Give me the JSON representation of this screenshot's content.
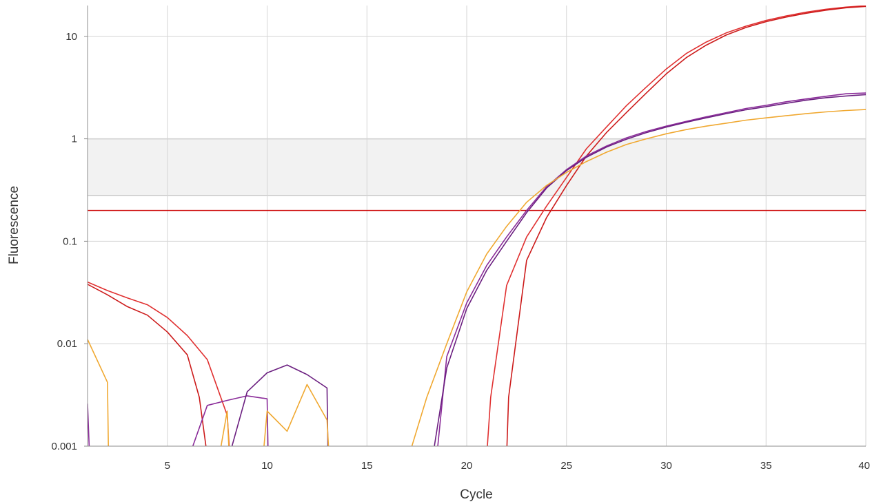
{
  "chart_data": {
    "type": "line",
    "title": "",
    "xlabel": "Cycle",
    "ylabel": "Fluorescence",
    "yscale": "log",
    "xlim": [
      1,
      40
    ],
    "ylim": [
      0.001,
      20
    ],
    "x_ticks": [
      5,
      10,
      15,
      20,
      25,
      30,
      35,
      40
    ],
    "x_tick_labels": [
      "5",
      "10",
      "15",
      "20",
      "25",
      "30",
      "35",
      "40"
    ],
    "y_ticks": [
      0.001,
      0.01,
      0.1,
      1,
      10
    ],
    "y_tick_labels": [
      "0.001",
      "0.01",
      "0.1",
      "1",
      "10"
    ],
    "grid": true,
    "legend": "none",
    "threshold": {
      "value": 0.2,
      "color": "#cc0000"
    },
    "shaded_band": {
      "from": 0.28,
      "to": 1.0,
      "color": "#f2f2f2"
    },
    "series": [
      {
        "color": "#e03030",
        "points": [
          [
            1,
            0.04
          ],
          [
            2,
            0.033
          ],
          [
            3,
            0.028
          ],
          [
            4,
            0.024
          ],
          [
            5,
            0.018
          ],
          [
            6,
            0.012
          ],
          [
            7,
            0.007
          ],
          [
            8,
            0.002
          ],
          [
            8.2,
            0.0005
          ],
          [
            21,
            0.0008
          ],
          [
            21.2,
            0.003
          ],
          [
            22,
            0.037
          ],
          [
            23,
            0.11
          ],
          [
            24,
            0.22
          ],
          [
            25,
            0.42
          ],
          [
            26,
            0.8
          ],
          [
            27,
            1.3
          ],
          [
            28,
            2.1
          ],
          [
            29,
            3.2
          ],
          [
            30,
            4.8
          ],
          [
            31,
            6.8
          ],
          [
            32,
            8.8
          ],
          [
            33,
            10.8
          ],
          [
            34,
            12.6
          ],
          [
            35,
            14.3
          ],
          [
            36,
            15.8
          ],
          [
            37,
            17.2
          ],
          [
            38,
            18.4
          ],
          [
            39,
            19.3
          ],
          [
            40,
            19.9
          ]
        ]
      },
      {
        "color": "#cc1a1a",
        "points": [
          [
            1,
            0.038
          ],
          [
            2,
            0.03
          ],
          [
            3,
            0.023
          ],
          [
            4,
            0.019
          ],
          [
            5,
            0.013
          ],
          [
            6,
            0.0078
          ],
          [
            6.6,
            0.003
          ],
          [
            7,
            0.0008
          ],
          [
            22,
            0.0008
          ],
          [
            22.1,
            0.003
          ],
          [
            23,
            0.065
          ],
          [
            24,
            0.17
          ],
          [
            25,
            0.35
          ],
          [
            26,
            0.68
          ],
          [
            27,
            1.15
          ],
          [
            28,
            1.8
          ],
          [
            29,
            2.8
          ],
          [
            30,
            4.3
          ],
          [
            31,
            6.2
          ],
          [
            32,
            8.2
          ],
          [
            33,
            10.3
          ],
          [
            34,
            12.2
          ],
          [
            35,
            13.9
          ],
          [
            36,
            15.4
          ],
          [
            37,
            16.8
          ],
          [
            38,
            18.0
          ],
          [
            39,
            19.0
          ],
          [
            40,
            19.6
          ]
        ]
      },
      {
        "color": "#8a2b99",
        "points": [
          [
            1,
            0.0026
          ],
          [
            1.1,
            0.0008
          ],
          [
            6.1,
            0.0008
          ],
          [
            7,
            0.0025
          ],
          [
            8,
            0.0028
          ],
          [
            9,
            0.0031
          ],
          [
            10,
            0.0029
          ],
          [
            10.05,
            0.0008
          ],
          [
            18.5,
            0.0008
          ],
          [
            19,
            0.0075
          ],
          [
            20,
            0.025
          ],
          [
            21,
            0.058
          ],
          [
            22,
            0.11
          ],
          [
            23,
            0.2
          ],
          [
            24,
            0.34
          ],
          [
            25,
            0.5
          ],
          [
            26,
            0.68
          ],
          [
            27,
            0.85
          ],
          [
            28,
            1.02
          ],
          [
            29,
            1.18
          ],
          [
            30,
            1.33
          ],
          [
            31,
            1.48
          ],
          [
            32,
            1.64
          ],
          [
            33,
            1.8
          ],
          [
            34,
            1.98
          ],
          [
            35,
            2.12
          ],
          [
            36,
            2.3
          ],
          [
            37,
            2.45
          ],
          [
            38,
            2.6
          ],
          [
            39,
            2.75
          ],
          [
            40,
            2.8
          ]
        ]
      },
      {
        "color": "#6b1f80",
        "points": [
          [
            8.1,
            0.0008
          ],
          [
            9,
            0.0034
          ],
          [
            10,
            0.0052
          ],
          [
            11,
            0.0062
          ],
          [
            12,
            0.005
          ],
          [
            13,
            0.0037
          ],
          [
            13.05,
            0.0008
          ],
          [
            18.3,
            0.0008
          ],
          [
            19,
            0.0058
          ],
          [
            20,
            0.022
          ],
          [
            21,
            0.052
          ],
          [
            22,
            0.1
          ],
          [
            23,
            0.19
          ],
          [
            24,
            0.33
          ],
          [
            25,
            0.49
          ],
          [
            26,
            0.66
          ],
          [
            27,
            0.83
          ],
          [
            28,
            0.99
          ],
          [
            29,
            1.15
          ],
          [
            30,
            1.3
          ],
          [
            31,
            1.45
          ],
          [
            32,
            1.6
          ],
          [
            33,
            1.76
          ],
          [
            34,
            1.92
          ],
          [
            35,
            2.06
          ],
          [
            36,
            2.22
          ],
          [
            37,
            2.38
          ],
          [
            38,
            2.52
          ],
          [
            39,
            2.62
          ],
          [
            40,
            2.7
          ]
        ]
      },
      {
        "color": "#f0a830",
        "points": [
          [
            1,
            0.011
          ],
          [
            2,
            0.0042
          ],
          [
            2.05,
            0.0008
          ],
          [
            7.6,
            0.0008
          ],
          [
            8,
            0.0022
          ],
          [
            8.1,
            0.0008
          ],
          [
            9.8,
            0.0008
          ],
          [
            10,
            0.0022
          ],
          [
            11,
            0.0014
          ],
          [
            12,
            0.004
          ],
          [
            13,
            0.0018
          ],
          [
            13.1,
            0.0008
          ],
          [
            17.1,
            0.0008
          ],
          [
            18,
            0.003
          ],
          [
            19,
            0.01
          ],
          [
            20,
            0.032
          ],
          [
            21,
            0.075
          ],
          [
            22,
            0.14
          ],
          [
            23,
            0.24
          ],
          [
            24,
            0.35
          ],
          [
            25,
            0.47
          ],
          [
            26,
            0.6
          ],
          [
            27,
            0.74
          ],
          [
            28,
            0.88
          ],
          [
            29,
            1.0
          ],
          [
            30,
            1.12
          ],
          [
            31,
            1.23
          ],
          [
            32,
            1.33
          ],
          [
            33,
            1.42
          ],
          [
            34,
            1.52
          ],
          [
            35,
            1.6
          ],
          [
            36,
            1.68
          ],
          [
            37,
            1.76
          ],
          [
            38,
            1.83
          ],
          [
            39,
            1.89
          ],
          [
            40,
            1.93
          ]
        ]
      }
    ]
  }
}
